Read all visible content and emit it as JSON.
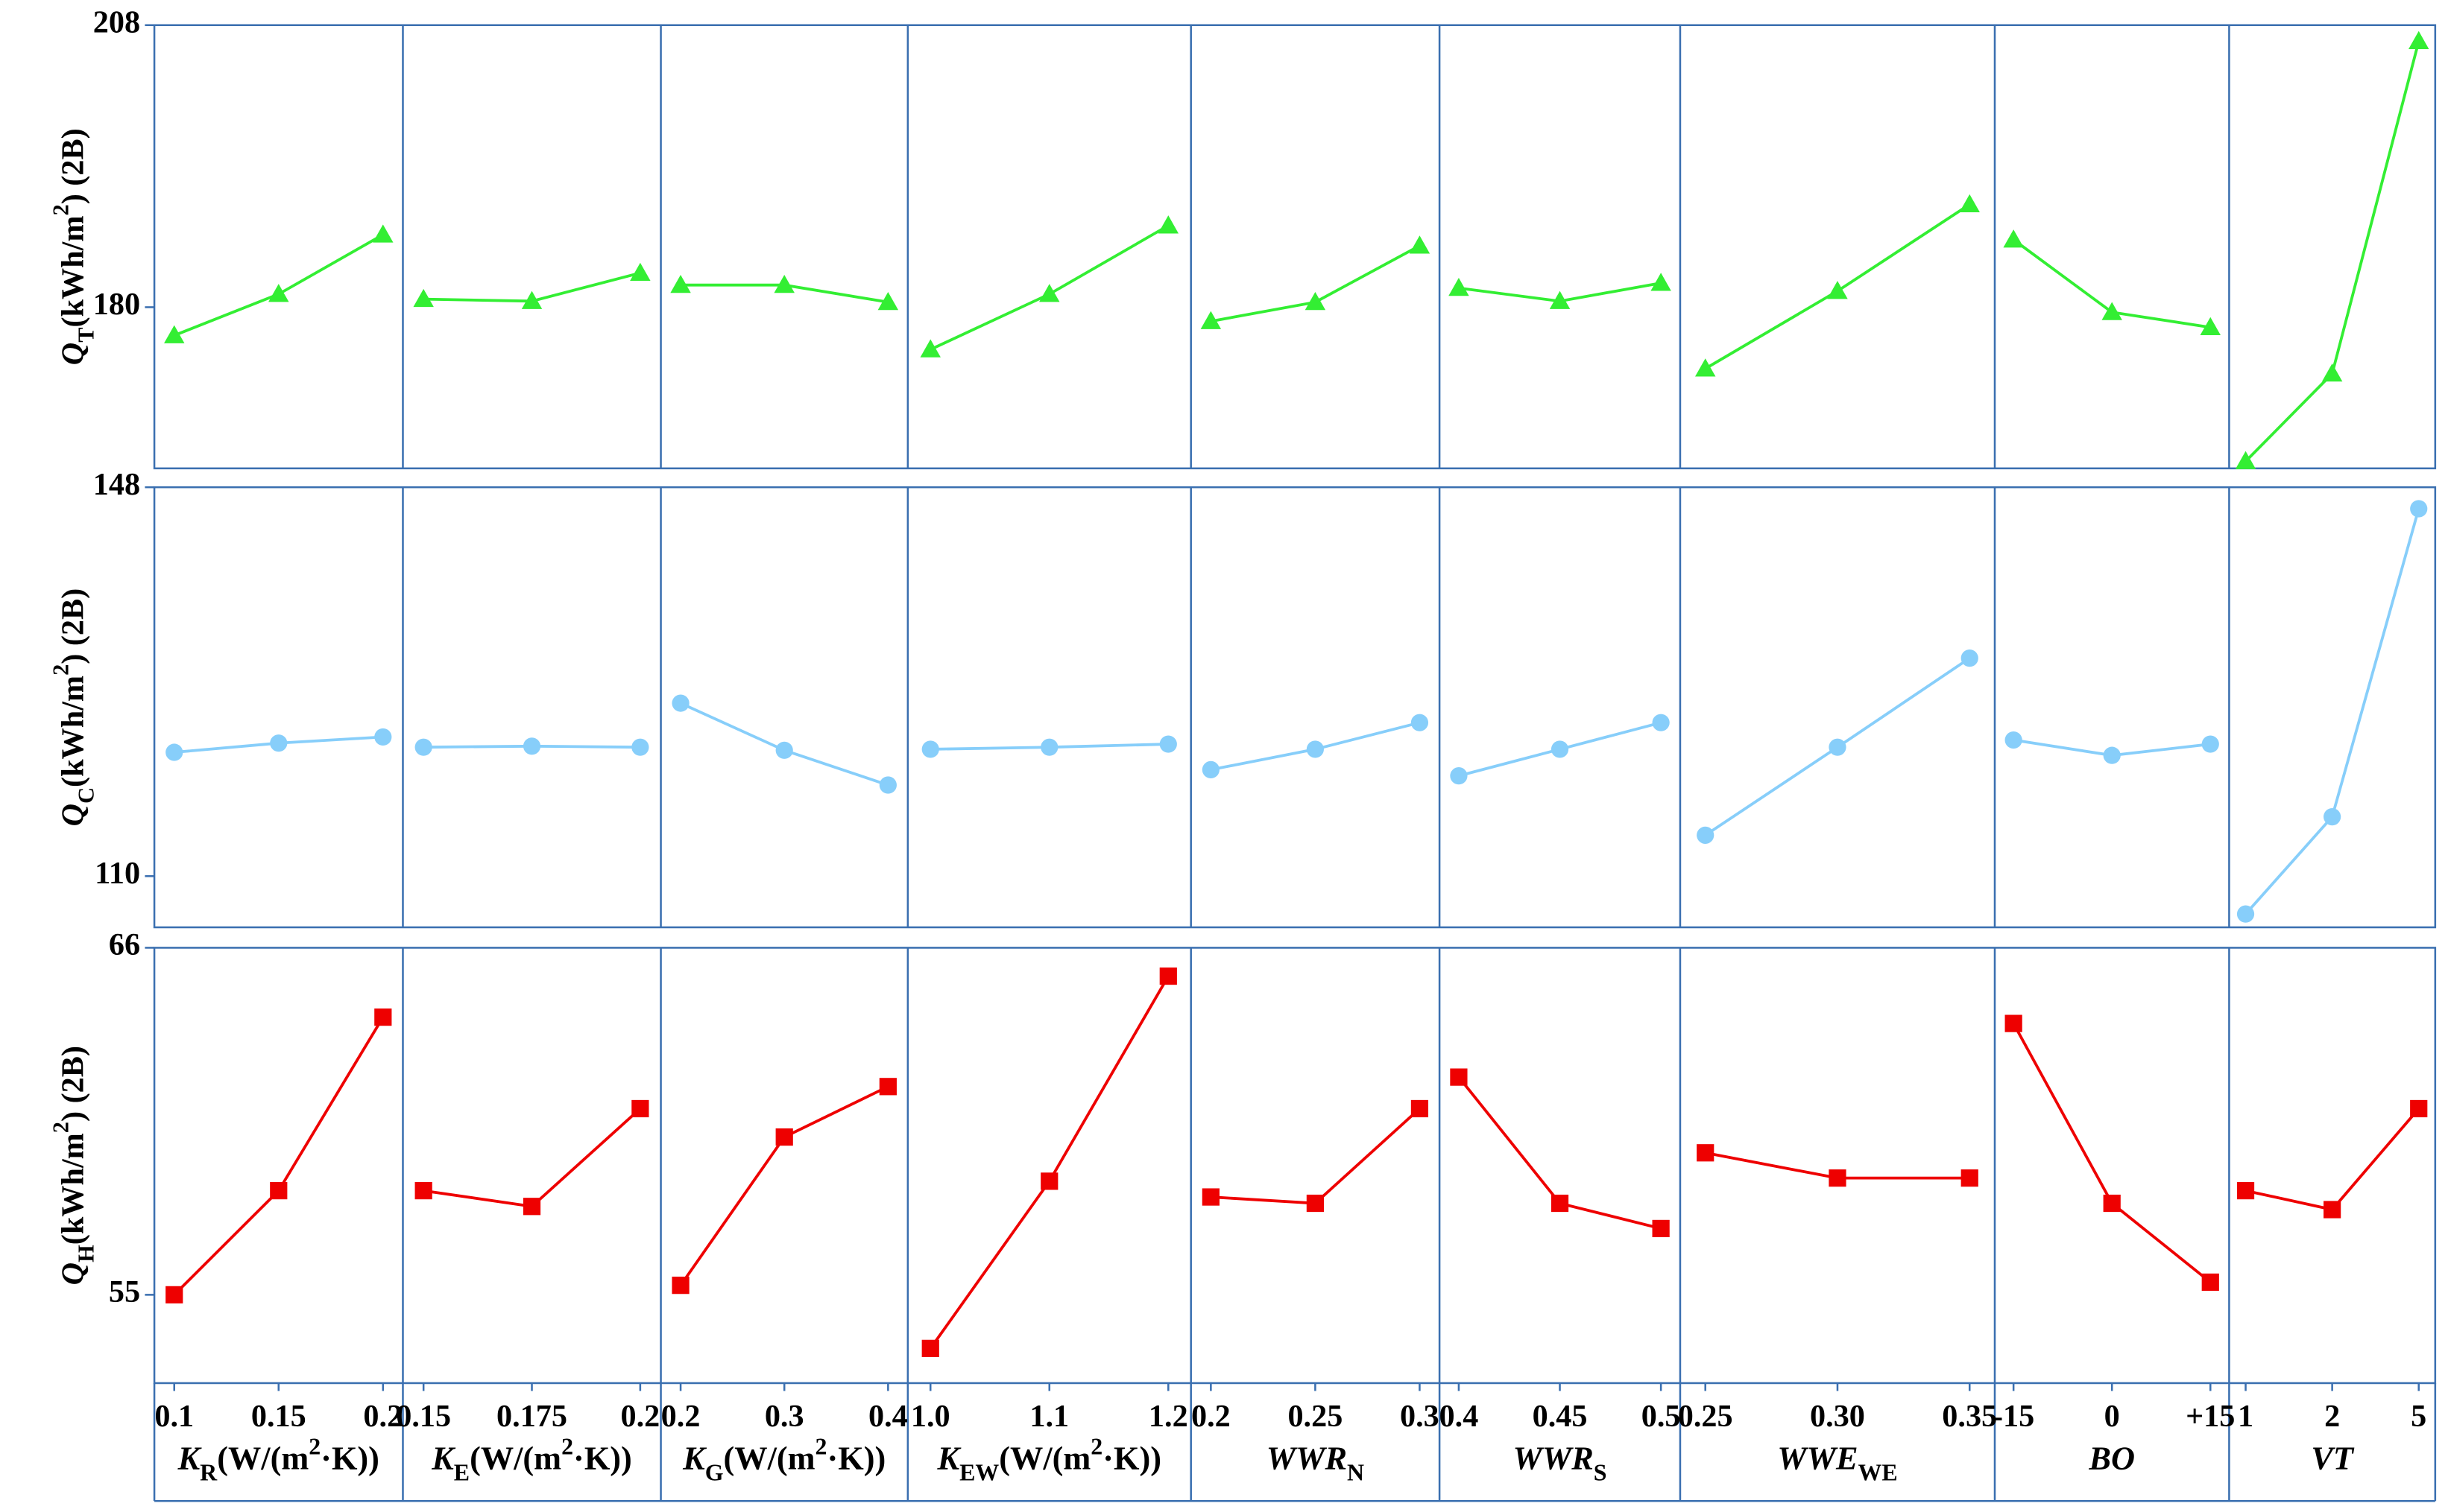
{
  "chart_data": {
    "type": "line",
    "frame_color": "#3a6fb0",
    "panels": [
      {
        "levels": [
          "0.1",
          "0.15",
          "0.2"
        ],
        "title": [
          {
            "t": "K",
            "s": "italic"
          },
          {
            "t": "R",
            "s": "sub"
          },
          {
            "t": "(W/(m"
          },
          {
            "t": "2",
            "s": "sup"
          },
          {
            "t": "·K))"
          }
        ]
      },
      {
        "levels": [
          "0.15",
          "0.175",
          "0.2"
        ],
        "title": [
          {
            "t": "K",
            "s": "italic"
          },
          {
            "t": "E",
            "s": "sub"
          },
          {
            "t": "(W/(m"
          },
          {
            "t": "2",
            "s": "sup"
          },
          {
            "t": "·K))"
          }
        ]
      },
      {
        "levels": [
          "0.2",
          "0.3",
          "0.4"
        ],
        "title": [
          {
            "t": "K",
            "s": "italic"
          },
          {
            "t": "G",
            "s": "sub"
          },
          {
            "t": "(W/(m"
          },
          {
            "t": "2",
            "s": "sup"
          },
          {
            "t": "·K))"
          }
        ]
      },
      {
        "levels": [
          "1.0",
          "1.1",
          "1.2"
        ],
        "title": [
          {
            "t": "K",
            "s": "italic"
          },
          {
            "t": "EW",
            "s": "sub"
          },
          {
            "t": "(W/(m"
          },
          {
            "t": "2",
            "s": "sup"
          },
          {
            "t": "·K))"
          }
        ]
      },
      {
        "levels": [
          "0.2",
          "0.25",
          "0.3"
        ],
        "title": [
          {
            "t": "WWR",
            "s": "italic"
          },
          {
            "t": "N",
            "s": "sub"
          }
        ]
      },
      {
        "levels": [
          "0.4",
          "0.45",
          "0.5"
        ],
        "title": [
          {
            "t": "WWR",
            "s": "italic"
          },
          {
            "t": "S",
            "s": "sub"
          }
        ]
      },
      {
        "levels": [
          "0.25",
          "0.30",
          "0.35"
        ],
        "title": [
          {
            "t": "WWE",
            "s": "italic"
          },
          {
            "t": "WE",
            "s": "sub"
          }
        ]
      },
      {
        "levels": [
          "-15",
          "0",
          "+15"
        ],
        "title": [
          {
            "t": "BO",
            "s": "italic"
          }
        ]
      },
      {
        "levels": [
          "1",
          "2",
          "5"
        ],
        "title": [
          {
            "t": "VT",
            "s": "italic"
          }
        ]
      }
    ],
    "rows": [
      {
        "ylabel": [
          {
            "t": "Q",
            "s": "italic"
          },
          {
            "t": "T",
            "s": "sub"
          },
          {
            "t": "(kWh/m"
          },
          {
            "t": "2",
            "s": "sup"
          },
          {
            "t": ") (2B)"
          }
        ],
        "color": "#33ee33",
        "marker": "triangle",
        "ylim": [
          164,
          208
        ],
        "yticks": [
          180,
          208
        ],
        "values": [
          [
            177.2,
            181.3,
            187.2
          ],
          [
            180.8,
            180.6,
            183.4
          ],
          [
            182.2,
            182.2,
            180.5
          ],
          [
            175.8,
            181.3,
            188.1
          ],
          [
            178.6,
            180.5,
            186.1
          ],
          [
            181.9,
            180.6,
            182.4
          ],
          [
            173.9,
            181.6,
            190.2
          ],
          [
            186.7,
            179.5,
            178.0
          ],
          [
            164.7,
            173.4,
            206.4
          ]
        ]
      },
      {
        "ylabel": [
          {
            "t": "Q",
            "s": "italic"
          },
          {
            "t": "C",
            "s": "sub"
          },
          {
            "t": "(kWh/m"
          },
          {
            "t": "2",
            "s": "sup"
          },
          {
            "t": ") (2B)"
          }
        ],
        "color": "#87cefa",
        "marker": "circle",
        "ylim": [
          105,
          148
        ],
        "yticks": [
          110,
          148
        ],
        "values": [
          [
            122.1,
            123.0,
            123.6
          ],
          [
            122.6,
            122.7,
            122.6
          ],
          [
            126.9,
            122.3,
            118.9
          ],
          [
            122.4,
            122.6,
            122.9
          ],
          [
            120.4,
            122.4,
            125.0
          ],
          [
            119.8,
            122.4,
            125.0
          ],
          [
            114.0,
            122.6,
            131.3
          ],
          [
            123.3,
            121.8,
            122.9
          ],
          [
            106.3,
            115.8,
            145.9
          ]
        ]
      },
      {
        "ylabel": [
          {
            "t": "Q",
            "s": "italic"
          },
          {
            "t": "H",
            "s": "sub"
          },
          {
            "t": "(kWh/m"
          },
          {
            "t": "2",
            "s": "sup"
          },
          {
            "t": ") (2B)"
          }
        ],
        "color": "#ee0000",
        "marker": "square",
        "ylim": [
          52.2,
          66
        ],
        "yticks": [
          55,
          66
        ],
        "values": [
          [
            55.0,
            58.3,
            63.8
          ],
          [
            58.3,
            57.8,
            60.9
          ],
          [
            55.3,
            60.0,
            61.6
          ],
          [
            53.3,
            58.6,
            65.1
          ],
          [
            58.1,
            57.9,
            60.9
          ],
          [
            61.9,
            57.9,
            57.1
          ],
          [
            59.5,
            58.7,
            58.7
          ],
          [
            63.6,
            57.9,
            55.4
          ],
          [
            58.3,
            57.7,
            60.9
          ]
        ]
      }
    ]
  }
}
